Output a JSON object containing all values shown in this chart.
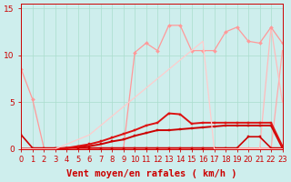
{
  "xlabel": "Vent moyen/en rafales ( km/h )",
  "background_color": "#ceeeed",
  "grid_color": "#aaddcc",
  "xlim": [
    0,
    23
  ],
  "ylim": [
    0,
    15.5
  ],
  "yticks": [
    0,
    5,
    10,
    15
  ],
  "xticks": [
    0,
    1,
    2,
    3,
    4,
    5,
    6,
    7,
    8,
    9,
    10,
    11,
    12,
    13,
    14,
    15,
    16,
    17,
    18,
    19,
    20,
    21,
    22,
    23
  ],
  "series": [
    {
      "x": [
        0,
        1,
        2,
        3,
        4,
        5,
        6,
        7,
        8,
        9,
        10,
        11,
        12,
        13,
        14,
        15,
        16,
        17,
        18,
        19,
        20,
        21,
        22,
        23
      ],
      "y": [
        8.5,
        5.3,
        0.1,
        0.1,
        0.1,
        0.1,
        0.1,
        0.1,
        0.1,
        0.1,
        0.1,
        0.1,
        0.1,
        0.1,
        0.1,
        0.1,
        0.1,
        0.1,
        0.1,
        0.1,
        0.1,
        0.1,
        0.1,
        0.1
      ],
      "color": "#ff9999",
      "linewidth": 0.9,
      "marker": "D",
      "markersize": 2.0
    },
    {
      "x": [
        0,
        1,
        2,
        3,
        4,
        5,
        6,
        7,
        8,
        9,
        10,
        11,
        12,
        13,
        14,
        15,
        16,
        17,
        18,
        19,
        20,
        21,
        22,
        23
      ],
      "y": [
        0,
        0,
        0,
        0,
        0,
        0,
        0,
        0,
        0,
        0,
        0,
        0,
        0,
        0,
        0,
        0,
        0,
        0,
        0,
        0,
        0,
        0,
        0,
        10.5
      ],
      "color": "#ffaaaa",
      "linewidth": 0.9,
      "marker": null,
      "markersize": 0
    },
    {
      "x": [
        0,
        1,
        2,
        3,
        4,
        5,
        6,
        7,
        8,
        9,
        10,
        11,
        12,
        13,
        14,
        15,
        16,
        17,
        18,
        19,
        20,
        21,
        22,
        23
      ],
      "y": [
        0,
        0,
        0,
        0,
        0,
        0,
        0,
        0,
        0,
        0,
        0,
        0,
        0,
        0,
        0,
        0,
        0,
        0,
        0,
        0,
        0,
        0,
        13.0,
        5.0
      ],
      "color": "#ffbbbb",
      "linewidth": 0.9,
      "marker": null,
      "markersize": 0
    },
    {
      "x": [
        0,
        1,
        2,
        3,
        4,
        5,
        6,
        7,
        8,
        9,
        10,
        11,
        12,
        13,
        14,
        15,
        16,
        17,
        18,
        19,
        20,
        21,
        22,
        23
      ],
      "y": [
        0,
        0,
        0,
        0,
        0,
        0,
        0,
        0,
        0,
        0,
        10.3,
        11.3,
        10.5,
        13.2,
        13.2,
        10.5,
        10.5,
        10.5,
        12.5,
        13.0,
        11.5,
        11.3,
        13.0,
        11.3
      ],
      "color": "#ff9999",
      "linewidth": 0.9,
      "marker": "D",
      "markersize": 2.0
    },
    {
      "x": [
        0,
        1,
        2,
        3,
        4,
        5,
        6,
        7,
        8,
        9,
        10,
        11,
        12,
        13,
        14,
        15,
        16,
        17,
        18,
        19,
        20,
        21,
        22,
        23
      ],
      "y": [
        1.5,
        0.1,
        0.1,
        0.1,
        0.1,
        0.1,
        0.1,
        0.1,
        0.1,
        0.1,
        0.1,
        0.1,
        0.1,
        0.1,
        0.1,
        0.1,
        0.1,
        0.1,
        0.1,
        0.1,
        1.3,
        1.3,
        0.1,
        0.1
      ],
      "color": "#cc0000",
      "linewidth": 1.2,
      "marker": "s",
      "markersize": 2.0
    },
    {
      "x": [
        0,
        1,
        2,
        3,
        4,
        5,
        6,
        7,
        8,
        9,
        10,
        11,
        12,
        13,
        14,
        15,
        16,
        17,
        18,
        19,
        20,
        21,
        22,
        23
      ],
      "y": [
        0,
        0,
        0,
        0,
        0.1,
        0.2,
        0.3,
        0.5,
        0.8,
        1.0,
        1.4,
        1.7,
        2.0,
        2.0,
        2.1,
        2.2,
        2.3,
        2.4,
        2.5,
        2.5,
        2.5,
        2.5,
        2.5,
        0.1
      ],
      "color": "#cc0000",
      "linewidth": 1.4,
      "marker": "s",
      "markersize": 2.0
    },
    {
      "x": [
        0,
        1,
        2,
        3,
        4,
        5,
        6,
        7,
        8,
        9,
        10,
        11,
        12,
        13,
        14,
        15,
        16,
        17,
        18,
        19,
        20,
        21,
        22,
        23
      ],
      "y": [
        0,
        0,
        0,
        0,
        0.1,
        0.3,
        0.5,
        0.8,
        1.2,
        1.6,
        2.0,
        2.5,
        2.8,
        3.8,
        3.7,
        2.7,
        2.8,
        2.8,
        2.8,
        2.8,
        2.8,
        2.8,
        2.8,
        0.3
      ],
      "color": "#dd1111",
      "linewidth": 1.4,
      "marker": "s",
      "markersize": 2.0
    },
    {
      "x": [
        0,
        1,
        2,
        3,
        4,
        5,
        6,
        7,
        8,
        9,
        10,
        11,
        12,
        13,
        14,
        15,
        16,
        17,
        18,
        19,
        20,
        21,
        22,
        23
      ],
      "y": [
        0,
        0,
        0,
        0,
        0.5,
        1.0,
        1.5,
        2.5,
        3.5,
        4.5,
        5.5,
        6.5,
        7.5,
        8.5,
        9.5,
        10.5,
        11.5,
        0,
        0,
        0,
        0,
        0,
        0,
        0
      ],
      "color": "#ffcccc",
      "linewidth": 0.9,
      "marker": null,
      "markersize": 0
    }
  ],
  "xlabel_fontsize": 7.5,
  "tick_fontsize": 6.0,
  "text_color": "#cc0000"
}
